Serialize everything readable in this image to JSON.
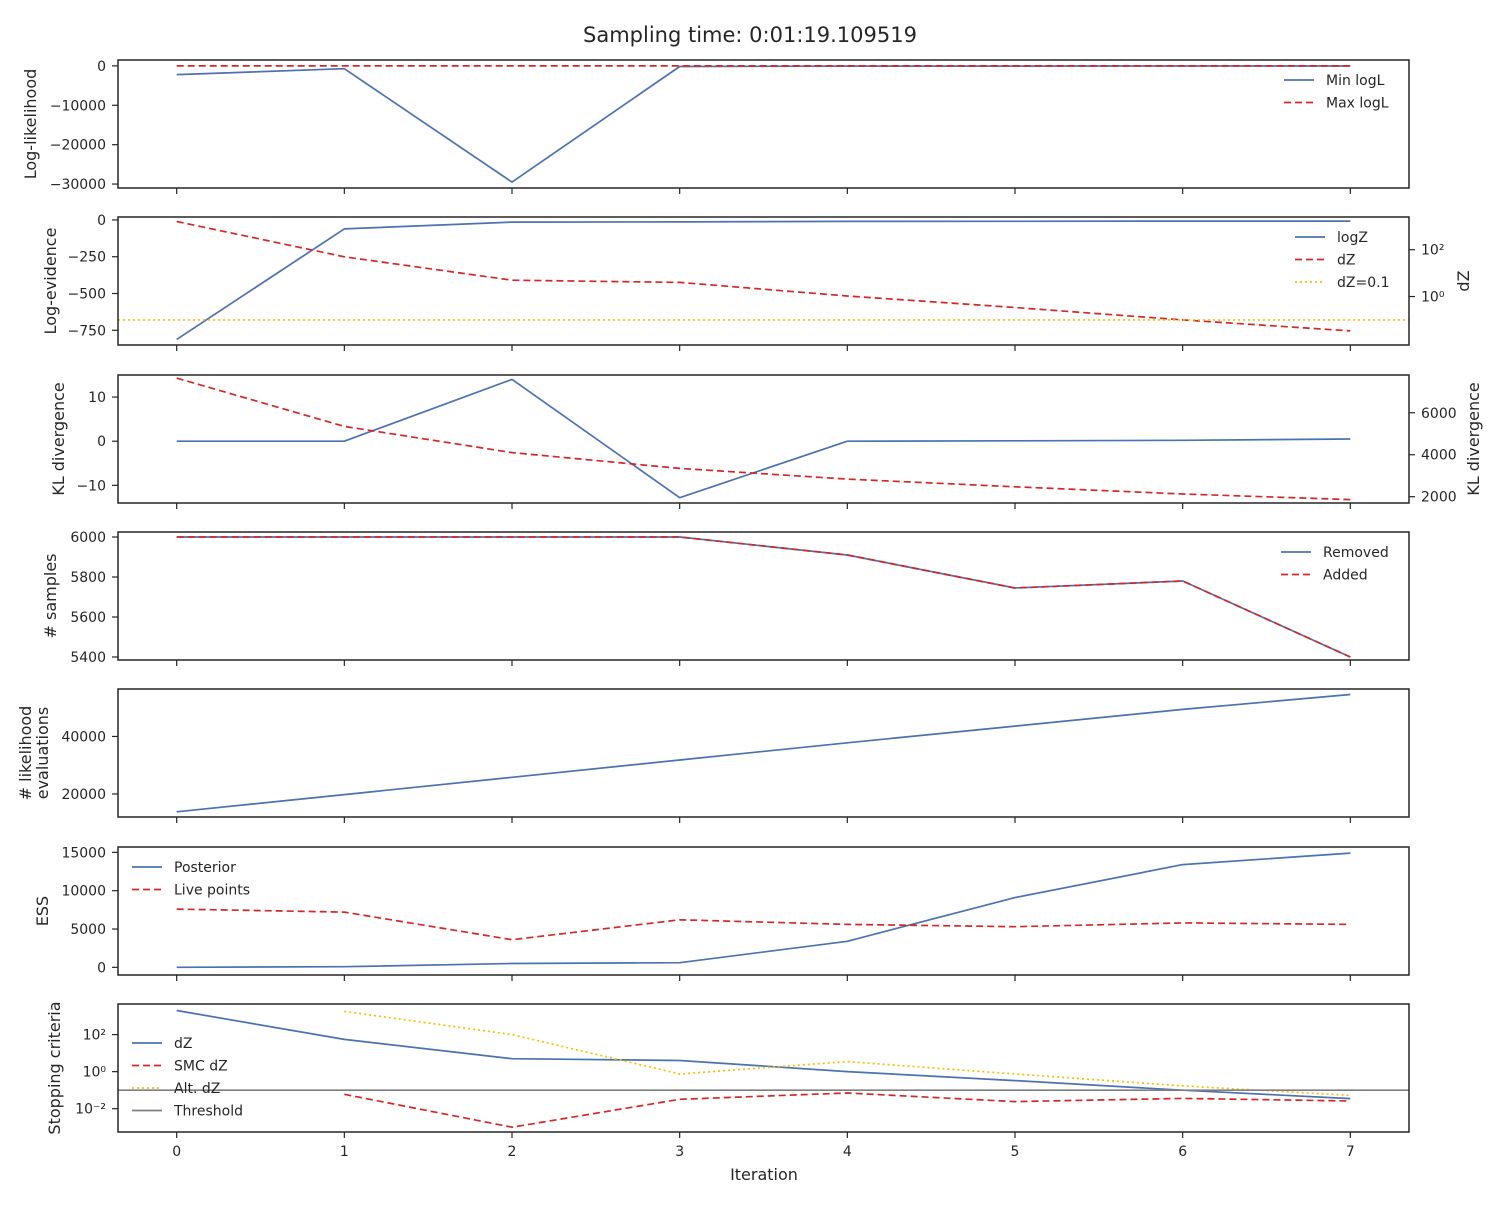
{
  "page": {
    "title": "Sampling time: 0:01:19.109519",
    "xlabel": "Iteration"
  },
  "colors": {
    "blue": "#4c72b0",
    "red": "#d62728",
    "yellow": "#f5c000",
    "gray": "#7f7f7f",
    "axis": "#262626"
  },
  "chart_data": [
    {
      "type": "line",
      "ylabel": "Log-likelihood",
      "ylim": [
        -31000,
        1500
      ],
      "yticks": [
        0,
        -10000,
        -20000,
        -30000
      ],
      "ytick_labels": [
        "0",
        "−10000",
        "−20000",
        "−30000"
      ],
      "x": [
        0,
        1,
        2,
        3,
        4,
        5,
        6,
        7
      ],
      "legend": "top-right",
      "series": [
        {
          "name": "Min logL",
          "style": "solid",
          "color": "blue",
          "values": [
            -2200,
            -700,
            -29500,
            -150,
            -60,
            -40,
            -30,
            -25
          ]
        },
        {
          "name": "Max logL",
          "style": "dashed",
          "color": "red",
          "values": [
            -10,
            -8,
            -6,
            -5,
            -5,
            -4,
            -4,
            -4
          ]
        }
      ]
    },
    {
      "type": "line",
      "ylabel": "Log-evidence",
      "ylabel_right": "dZ",
      "ylim": [
        -850,
        20
      ],
      "yticks": [
        0,
        -250,
        -500,
        -750
      ],
      "ytick_labels": [
        "0",
        "−250",
        "−500",
        "−750"
      ],
      "right_scale": "log",
      "right_ylim": [
        0.0085,
        2500
      ],
      "right_yticks": [
        100,
        1
      ],
      "right_ytick_labels": [
        "10²",
        "10⁰"
      ],
      "x": [
        0,
        1,
        2,
        3,
        4,
        5,
        6,
        7
      ],
      "legend": "top-right",
      "series": [
        {
          "name": "logZ",
          "style": "solid",
          "color": "blue",
          "axis": "left",
          "values": [
            -812,
            -61,
            -15,
            -13,
            -10,
            -9,
            -8,
            -8
          ]
        },
        {
          "name": "dZ",
          "style": "dashed",
          "color": "red",
          "axis": "right",
          "values": [
            1600,
            50,
            5,
            4,
            1.05,
            0.34,
            0.1,
            0.034
          ]
        },
        {
          "name": "dZ=0.1",
          "style": "dotted",
          "color": "yellow",
          "axis": "right",
          "hline": 0.1
        }
      ]
    },
    {
      "type": "line",
      "ylabel": "KL divergence",
      "ylabel_right": "KL divergence",
      "ylim": [
        -14,
        15
      ],
      "yticks": [
        10,
        0,
        -10
      ],
      "ytick_labels": [
        "10",
        "0",
        "−10"
      ],
      "right_ylim": [
        1700,
        7800
      ],
      "right_yticks": [
        6000,
        4000,
        2000
      ],
      "right_ytick_labels": [
        "6000",
        "4000",
        "2000"
      ],
      "x": [
        0,
        1,
        2,
        3,
        4,
        5,
        6,
        7
      ],
      "series": [
        {
          "style": "solid",
          "color": "blue",
          "axis": "left",
          "values": [
            0,
            0,
            14,
            -12.8,
            0,
            0.1,
            0.2,
            0.5
          ]
        },
        {
          "style": "dashed",
          "color": "red",
          "axis": "right",
          "values": [
            7650,
            5350,
            4100,
            3350,
            2840,
            2470,
            2130,
            1860
          ]
        }
      ]
    },
    {
      "type": "line",
      "ylabel": "# samples",
      "ylim": [
        5385,
        6025
      ],
      "yticks": [
        6000,
        5800,
        5600,
        5400
      ],
      "ytick_labels": [
        "6000",
        "5800",
        "5600",
        "5400"
      ],
      "x": [
        0,
        1,
        2,
        3,
        4,
        5,
        6,
        7
      ],
      "legend": "top-right",
      "series": [
        {
          "name": "Removed",
          "style": "solid",
          "color": "blue",
          "values": [
            6000,
            6000,
            6000,
            6000,
            5910,
            5745,
            5780,
            5400
          ]
        },
        {
          "name": "Added",
          "style": "dashed",
          "color": "red",
          "values": [
            6000,
            6000,
            6000,
            6000,
            5910,
            5745,
            5780,
            5400
          ]
        }
      ]
    },
    {
      "type": "line",
      "ylabel": "# likelihood",
      "ylabel_line2": "evaluations",
      "ylim": [
        12000,
        56500
      ],
      "yticks": [
        40000,
        20000
      ],
      "ytick_labels": [
        "40000",
        "20000"
      ],
      "x": [
        0,
        1,
        2,
        3,
        4,
        5,
        6,
        7
      ],
      "series": [
        {
          "style": "solid",
          "color": "blue",
          "values": [
            13800,
            19800,
            25800,
            31800,
            37800,
            43600,
            49400,
            54600
          ]
        }
      ]
    },
    {
      "type": "line",
      "ylabel": "ESS",
      "ylim": [
        -1000,
        15700
      ],
      "yticks": [
        15000,
        10000,
        5000,
        0
      ],
      "ytick_labels": [
        "15000",
        "10000",
        "5000",
        "0"
      ],
      "x": [
        0,
        1,
        2,
        3,
        4,
        5,
        6,
        7
      ],
      "legend": "top-left",
      "series": [
        {
          "name": "Posterior",
          "style": "solid",
          "color": "blue",
          "values": [
            0,
            80,
            500,
            600,
            3400,
            9100,
            13400,
            14900
          ]
        },
        {
          "name": "Live points",
          "style": "dashed",
          "color": "red",
          "values": [
            7600,
            7200,
            3600,
            6200,
            5600,
            5300,
            5800,
            5600
          ]
        }
      ]
    },
    {
      "type": "line",
      "ylabel": "Stopping criteria",
      "scale": "log",
      "ylim": [
        0.00055,
        4500
      ],
      "yticks": [
        100,
        1,
        0.01
      ],
      "ytick_labels": [
        "10²",
        "10⁰",
        "10⁻²"
      ],
      "x": [
        0,
        1,
        2,
        3,
        4,
        5,
        6,
        7
      ],
      "legend": "center-left",
      "series": [
        {
          "name": "dZ",
          "style": "solid",
          "color": "blue",
          "values": [
            2000,
            55,
            5,
            4,
            1,
            0.33,
            0.1,
            0.035
          ]
        },
        {
          "name": "SMC dZ",
          "style": "dashed",
          "color": "red",
          "x": [
            1,
            2,
            3,
            4,
            5,
            6,
            7
          ],
          "values": [
            0.06,
            0.001,
            0.032,
            0.07,
            0.024,
            0.036,
            0.026
          ]
        },
        {
          "name": "Alt. dZ",
          "style": "dotted",
          "color": "yellow",
          "x": [
            1,
            2,
            3,
            4,
            5,
            6,
            7
          ],
          "values": [
            1800,
            100,
            0.75,
            3.5,
            0.75,
            0.17,
            0.052
          ]
        },
        {
          "name": "Threshold",
          "style": "solid",
          "color": "gray",
          "hline": 0.1
        }
      ]
    }
  ]
}
